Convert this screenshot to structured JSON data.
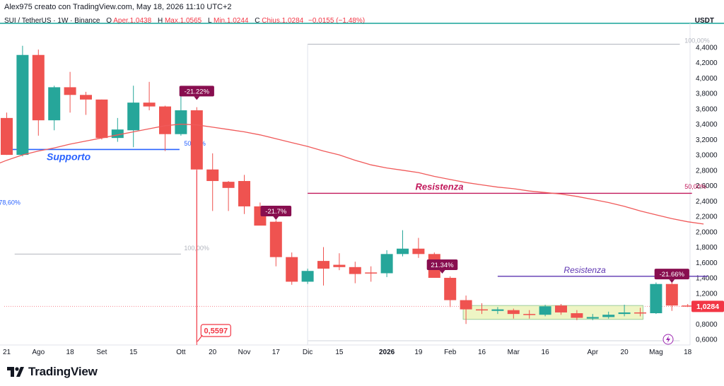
{
  "header": {
    "author_line": "Alex975 creato con TradingView.com, May 18, 2026 11:10 UTC+2",
    "symbol": "SUI / TetherUS · 1W · Binance",
    "open_label": "O",
    "open": "Aper.1,0438",
    "high_label": "H",
    "high": "Max.1,0565",
    "low_label": "L",
    "low": "Min.1,0244",
    "close_label": "C",
    "close": "Chius.1,0284",
    "change": "−0,0155 (−1,48%)",
    "currency": "USDT"
  },
  "brand": {
    "name": "TradingView",
    "logo_icon": "tradingview-logo-icon"
  },
  "colors": {
    "up": "#26a69a",
    "down": "#ef5350",
    "ma": "#f05a5a",
    "support": "#2962ff",
    "resistance_red": "#c2185b",
    "resistance_purple": "#5e35b1",
    "badge": "#880e4f",
    "price_tag": "#f23645",
    "teal_line": "#17a398"
  },
  "chart_data": {
    "type": "candlestick",
    "symbol": "SUI / TetherUS",
    "interval": "1W",
    "ylim": [
      0.6,
      4.6
    ],
    "y_ticks": [
      "4,4000",
      "4,2000",
      "4,0000",
      "3,8000",
      "3,6000",
      "3,4000",
      "3,2000",
      "3,0000",
      "2,8000",
      "2,6000",
      "2,4000",
      "2,2000",
      "2,0000",
      "1,8000",
      "1,6000",
      "1,4000",
      "1,2000",
      "1,0000",
      "0,8000",
      "0,6000"
    ],
    "x_ticks": [
      {
        "i": 0,
        "label": "21",
        "bold": false
      },
      {
        "i": 2,
        "label": "Ago",
        "bold": false
      },
      {
        "i": 4,
        "label": "18",
        "bold": false
      },
      {
        "i": 6,
        "label": "Set",
        "bold": false
      },
      {
        "i": 8,
        "label": "15",
        "bold": false
      },
      {
        "i": 11,
        "label": "Ott",
        "bold": false
      },
      {
        "i": 13,
        "label": "20",
        "bold": false
      },
      {
        "i": 15,
        "label": "Nov",
        "bold": false
      },
      {
        "i": 17,
        "label": "17",
        "bold": false
      },
      {
        "i": 19,
        "label": "Dic",
        "bold": false
      },
      {
        "i": 21,
        "label": "15",
        "bold": false
      },
      {
        "i": 24,
        "label": "2026",
        "bold": true
      },
      {
        "i": 26,
        "label": "19",
        "bold": false
      },
      {
        "i": 28,
        "label": "Feb",
        "bold": false
      },
      {
        "i": 30,
        "label": "16",
        "bold": false
      },
      {
        "i": 32,
        "label": "Mar",
        "bold": false
      },
      {
        "i": 34,
        "label": "16",
        "bold": false
      },
      {
        "i": 37,
        "label": "Apr",
        "bold": false
      },
      {
        "i": 39,
        "label": "20",
        "bold": false
      },
      {
        "i": 41,
        "label": "Mag",
        "bold": false
      },
      {
        "i": 43,
        "label": "18",
        "bold": false
      }
    ],
    "candles": [
      {
        "o": 3.48,
        "h": 3.55,
        "l": 3.0,
        "c": 3.0
      },
      {
        "o": 3.0,
        "h": 4.42,
        "l": 2.98,
        "c": 4.3
      },
      {
        "o": 4.3,
        "h": 4.37,
        "l": 3.25,
        "c": 3.45
      },
      {
        "o": 3.45,
        "h": 3.9,
        "l": 3.32,
        "c": 3.88
      },
      {
        "o": 3.88,
        "h": 4.08,
        "l": 3.55,
        "c": 3.78
      },
      {
        "o": 3.78,
        "h": 3.82,
        "l": 3.52,
        "c": 3.72
      },
      {
        "o": 3.72,
        "h": 3.72,
        "l": 3.2,
        "c": 3.22
      },
      {
        "o": 3.22,
        "h": 3.48,
        "l": 3.17,
        "c": 3.33
      },
      {
        "o": 3.32,
        "h": 3.9,
        "l": 3.1,
        "c": 3.68
      },
      {
        "o": 3.68,
        "h": 3.95,
        "l": 3.58,
        "c": 3.63
      },
      {
        "o": 3.63,
        "h": 3.64,
        "l": 3.05,
        "c": 3.27
      },
      {
        "o": 3.27,
        "h": 3.77,
        "l": 3.25,
        "c": 3.58
      },
      {
        "o": 3.58,
        "h": 3.62,
        "l": 0.5597,
        "c": 2.81
      },
      {
        "o": 2.81,
        "h": 3.02,
        "l": 2.27,
        "c": 2.66
      },
      {
        "o": 2.65,
        "h": 2.66,
        "l": 2.27,
        "c": 2.57
      },
      {
        "o": 2.66,
        "h": 2.74,
        "l": 2.23,
        "c": 2.33
      },
      {
        "o": 2.33,
        "h": 2.38,
        "l": 2.1,
        "c": 2.08
      },
      {
        "o": 2.13,
        "h": 2.15,
        "l": 1.55,
        "c": 1.67
      },
      {
        "o": 1.67,
        "h": 1.73,
        "l": 1.31,
        "c": 1.35
      },
      {
        "o": 1.35,
        "h": 1.52,
        "l": 1.32,
        "c": 1.49
      },
      {
        "o": 1.62,
        "h": 1.8,
        "l": 1.3,
        "c": 1.52
      },
      {
        "o": 1.57,
        "h": 1.72,
        "l": 1.5,
        "c": 1.54
      },
      {
        "o": 1.54,
        "h": 1.61,
        "l": 1.33,
        "c": 1.45
      },
      {
        "o": 1.47,
        "h": 1.55,
        "l": 1.35,
        "c": 1.46
      },
      {
        "o": 1.46,
        "h": 1.76,
        "l": 1.41,
        "c": 1.71
      },
      {
        "o": 1.71,
        "h": 2.02,
        "l": 1.68,
        "c": 1.78
      },
      {
        "o": 1.78,
        "h": 1.92,
        "l": 1.66,
        "c": 1.71
      },
      {
        "o": 1.71,
        "h": 1.73,
        "l": 1.4,
        "c": 1.4
      },
      {
        "o": 1.4,
        "h": 1.42,
        "l": 1.02,
        "c": 1.11
      },
      {
        "o": 1.11,
        "h": 1.17,
        "l": 0.8,
        "c": 0.99
      },
      {
        "o": 0.99,
        "h": 1.07,
        "l": 0.93,
        "c": 0.98
      },
      {
        "o": 0.97,
        "h": 1.02,
        "l": 0.93,
        "c": 0.99
      },
      {
        "o": 0.98,
        "h": 1.0,
        "l": 0.87,
        "c": 0.93
      },
      {
        "o": 0.93,
        "h": 0.98,
        "l": 0.87,
        "c": 0.92
      },
      {
        "o": 0.92,
        "h": 1.05,
        "l": 0.9,
        "c": 1.03
      },
      {
        "o": 1.04,
        "h": 1.06,
        "l": 0.92,
        "c": 0.95
      },
      {
        "o": 0.94,
        "h": 0.98,
        "l": 0.85,
        "c": 0.88
      },
      {
        "o": 0.87,
        "h": 0.93,
        "l": 0.85,
        "c": 0.89
      },
      {
        "o": 0.89,
        "h": 0.96,
        "l": 0.87,
        "c": 0.92
      },
      {
        "o": 0.93,
        "h": 1.05,
        "l": 0.9,
        "c": 0.95
      },
      {
        "o": 0.95,
        "h": 1.01,
        "l": 0.9,
        "c": 0.94
      },
      {
        "o": 0.94,
        "h": 1.34,
        "l": 0.93,
        "c": 1.32
      },
      {
        "o": 1.32,
        "h": 1.34,
        "l": 0.97,
        "c": 1.04
      },
      {
        "o": 1.04,
        "h": 1.06,
        "l": 1.02,
        "c": 1.03
      }
    ],
    "moving_average": [
      [
        -1,
        2.85
      ],
      [
        0,
        2.93
      ],
      [
        1,
        3.0
      ],
      [
        2,
        3.05
      ],
      [
        3,
        3.09
      ],
      [
        4,
        3.14
      ],
      [
        5,
        3.18
      ],
      [
        6,
        3.22
      ],
      [
        7,
        3.26
      ],
      [
        8,
        3.3
      ],
      [
        9,
        3.34
      ],
      [
        10,
        3.38
      ],
      [
        11,
        3.4
      ],
      [
        12,
        3.39
      ],
      [
        13,
        3.36
      ],
      [
        14,
        3.33
      ],
      [
        15,
        3.3
      ],
      [
        16,
        3.26
      ],
      [
        17,
        3.21
      ],
      [
        18,
        3.16
      ],
      [
        19,
        3.11
      ],
      [
        20,
        3.05
      ],
      [
        21,
        3.0
      ],
      [
        22,
        2.93
      ],
      [
        23,
        2.87
      ],
      [
        24,
        2.83
      ],
      [
        25,
        2.8
      ],
      [
        26,
        2.77
      ],
      [
        27,
        2.72
      ],
      [
        28,
        2.68
      ],
      [
        29,
        2.64
      ],
      [
        30,
        2.61
      ],
      [
        31,
        2.58
      ],
      [
        32,
        2.56
      ],
      [
        33,
        2.53
      ],
      [
        34,
        2.51
      ],
      [
        35,
        2.49
      ],
      [
        36,
        2.46
      ],
      [
        37,
        2.42
      ],
      [
        38,
        2.38
      ],
      [
        39,
        2.33
      ],
      [
        40,
        2.27
      ],
      [
        41,
        2.22
      ],
      [
        42,
        2.17
      ],
      [
        43,
        2.13
      ],
      [
        44,
        2.1
      ]
    ],
    "support_line": {
      "label": "Supporto",
      "price": 3.07,
      "from": 0,
      "to": 11
    },
    "resistance_lines": [
      {
        "label": "Resistenza",
        "price": 2.5,
        "from": 19,
        "to": 43,
        "style": "red"
      },
      {
        "label": "Resistenza",
        "price": 1.42,
        "from": 31,
        "to": 44,
        "style": "purple"
      }
    ],
    "consolidation_box": {
      "from": 29,
      "to": 40,
      "top": 1.04,
      "bottom": 0.86
    },
    "fib_labels": [
      {
        "text": "100,00%",
        "price": 4.46,
        "i": 42.8,
        "color": "#b2b5be"
      },
      {
        "text": "50,00%",
        "price": 3.12,
        "i": 11.2,
        "color": "#2962ff"
      },
      {
        "text": "78,60%",
        "price": 2.35,
        "i": -0.5,
        "color": "#2962ff"
      },
      {
        "text": "100,00%",
        "price": 1.76,
        "i": 11.2,
        "color": "#b2b5be"
      },
      {
        "text": "50,00%",
        "price": 2.56,
        "i": 42.8,
        "color": "#c2185b"
      }
    ],
    "badges": [
      {
        "text": "-21.22%",
        "i": 12,
        "price": 3.83
      },
      {
        "text": "-21.7%",
        "i": 17,
        "price": 2.27
      },
      {
        "text": "21.34%",
        "i": 27.5,
        "price": 1.57
      },
      {
        "text": "-21.66%",
        "i": 42,
        "price": 1.45
      }
    ],
    "low_marker": {
      "value": "0,5597",
      "i": 12
    },
    "last_price": {
      "value": "1,0284",
      "price": 1.0284
    }
  }
}
